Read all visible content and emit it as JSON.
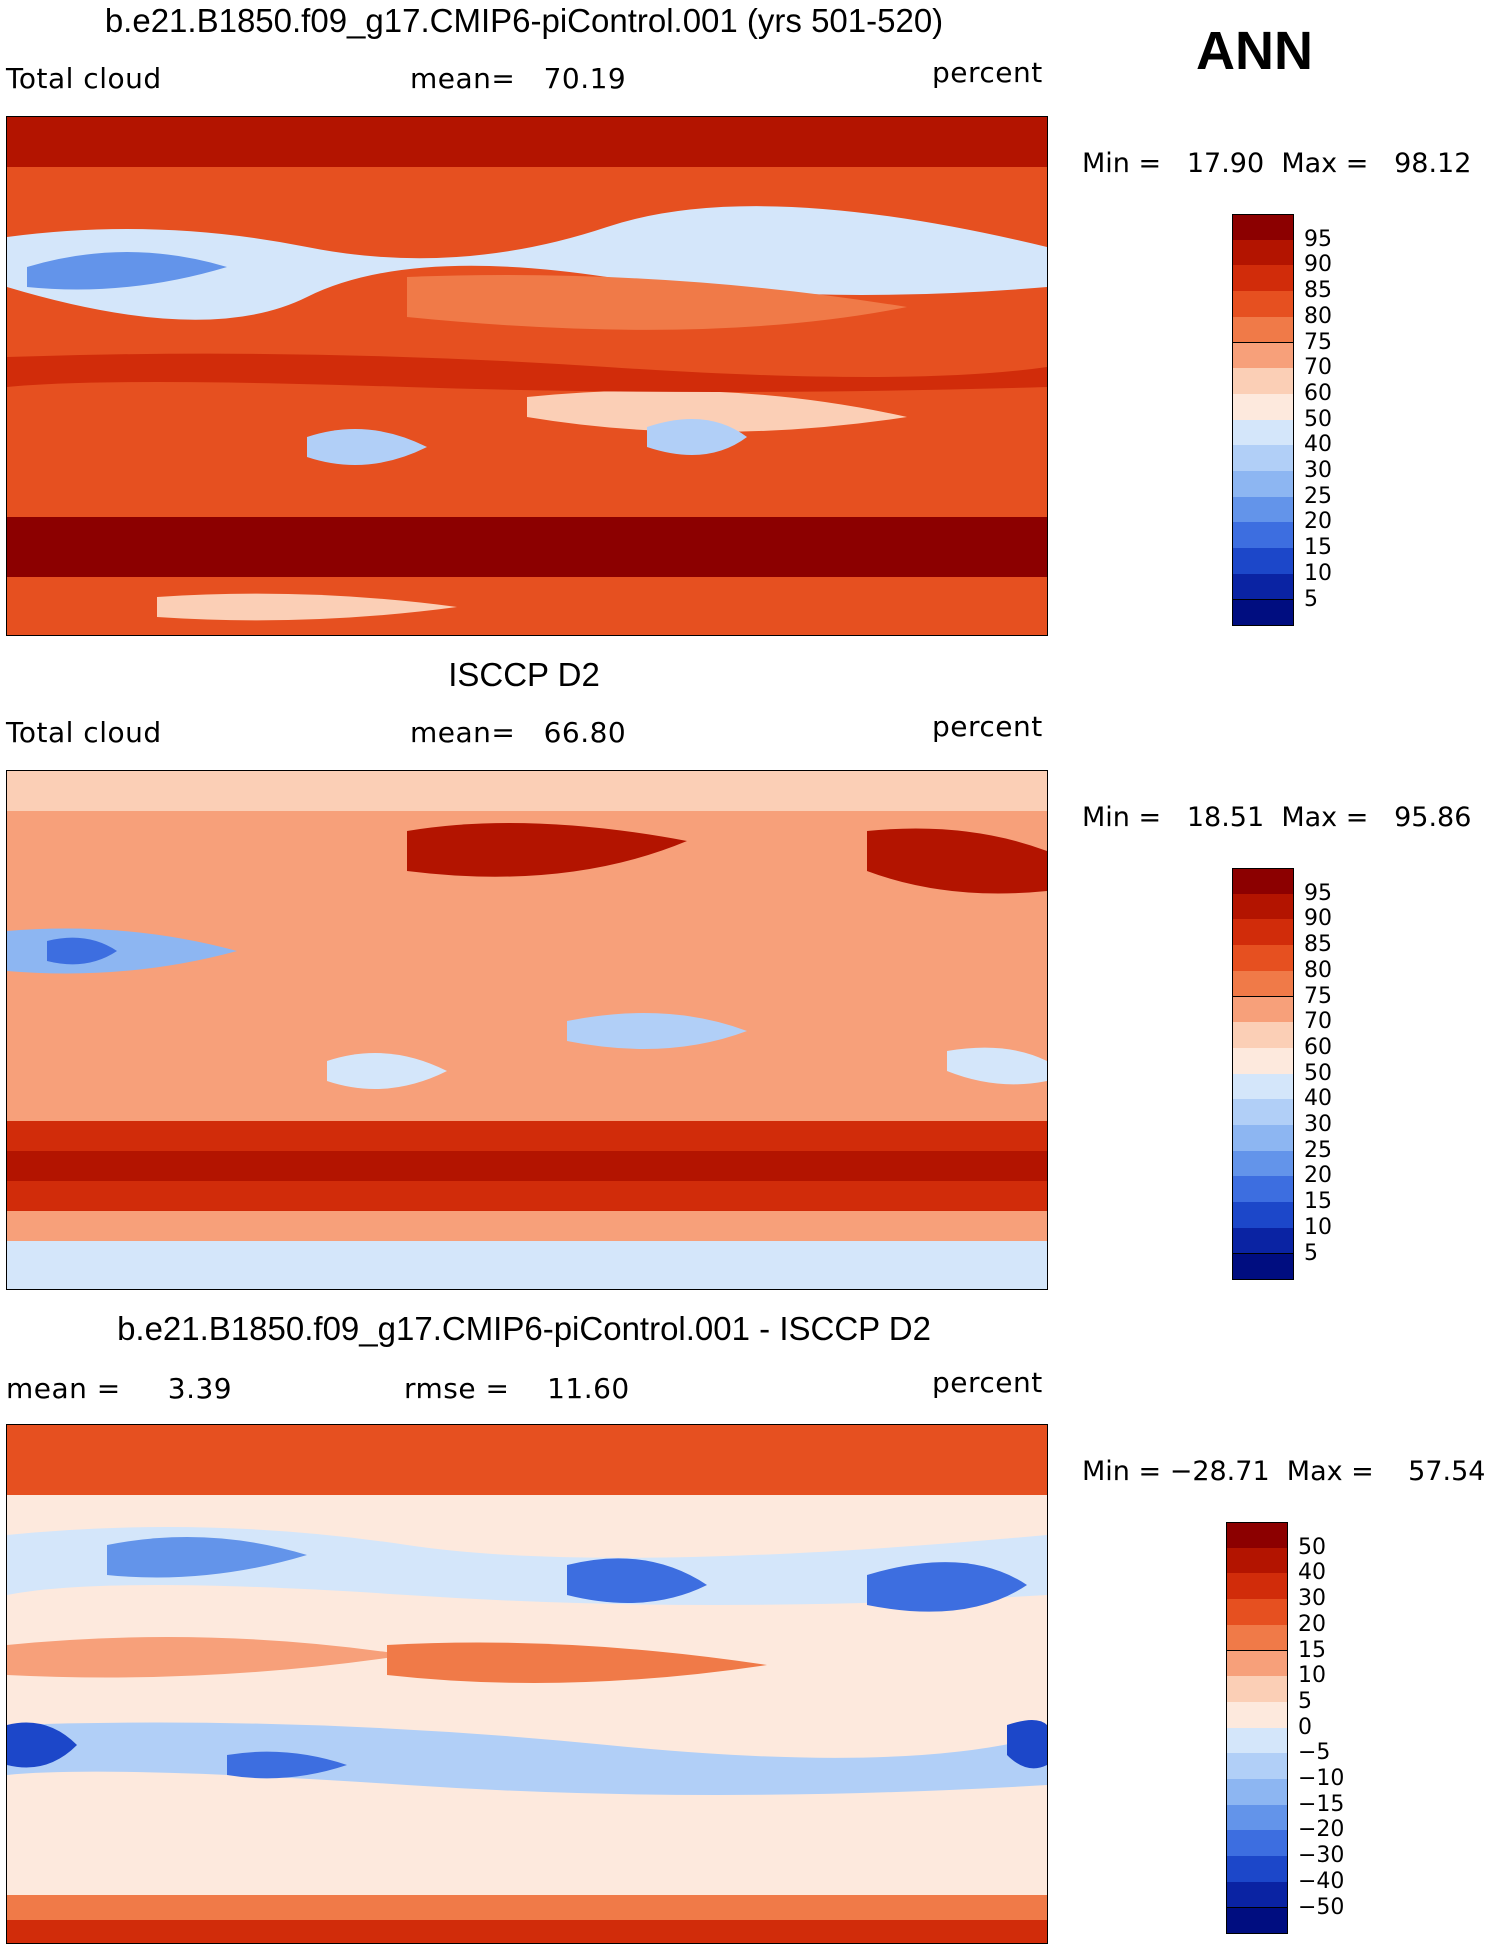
{
  "header": {
    "season": "ANN"
  },
  "panels": [
    {
      "title": "b.e21.B1850.f09_g17.CMIP6-piControl.001 (yrs 501-520)",
      "left_label": "Total cloud",
      "center_label": "mean=   70.19",
      "right_label": "percent",
      "minmax": "Min =   17.90  Max =   98.12",
      "colorbar": {
        "labels": [
          "95",
          "90",
          "85",
          "80",
          "75",
          "70",
          "60",
          "50",
          "40",
          "30",
          "25",
          "20",
          "15",
          "10",
          "5"
        ],
        "colors": [
          "#8c0000",
          "#b31400",
          "#d12c0a",
          "#e65020",
          "#f07a48",
          "#f7a07a",
          "#fbcfb6",
          "#fde9dd",
          "#d4e6fa",
          "#b1cff7",
          "#8db6f2",
          "#6394ea",
          "#3d6ee0",
          "#1c47c9",
          "#0a23a3",
          "#000d80"
        ]
      },
      "map_fill": "#e6572c"
    },
    {
      "title": "ISCCP D2",
      "left_label": "Total cloud",
      "center_label": "mean=   66.80",
      "right_label": "percent",
      "minmax": "Min =   18.51  Max =   95.86",
      "colorbar": {
        "labels": [
          "95",
          "90",
          "85",
          "80",
          "75",
          "70",
          "60",
          "50",
          "40",
          "30",
          "25",
          "20",
          "15",
          "10",
          "5"
        ],
        "colors": [
          "#8c0000",
          "#b31400",
          "#d12c0a",
          "#e65020",
          "#f07a48",
          "#f7a07a",
          "#fbcfb6",
          "#fde9dd",
          "#d4e6fa",
          "#b1cff7",
          "#8db6f2",
          "#6394ea",
          "#3d6ee0",
          "#1c47c9",
          "#0a23a3",
          "#000d80"
        ]
      },
      "map_fill": "#f7a07a"
    },
    {
      "title": "b.e21.B1850.f09_g17.CMIP6-piControl.001 - ISCCP D2",
      "left_label": "mean =     3.39",
      "center_label": "rmse =    11.60",
      "right_label": "percent",
      "minmax": "Min = −28.71  Max =    57.54",
      "colorbar": {
        "labels": [
          "50",
          "40",
          "30",
          "20",
          "15",
          "10",
          "5",
          "0",
          "−5",
          "−10",
          "−15",
          "−20",
          "−30",
          "−40",
          "−50"
        ],
        "colors": [
          "#8c0000",
          "#b31400",
          "#d12c0a",
          "#e65020",
          "#f07a48",
          "#f7a07a",
          "#fbcfb6",
          "#fde9dd",
          "#d4e6fa",
          "#b1cff7",
          "#8db6f2",
          "#6394ea",
          "#3d6ee0",
          "#1c47c9",
          "#0a23a3",
          "#000d80"
        ]
      },
      "map_fill": "#fde9dd"
    }
  ]
}
